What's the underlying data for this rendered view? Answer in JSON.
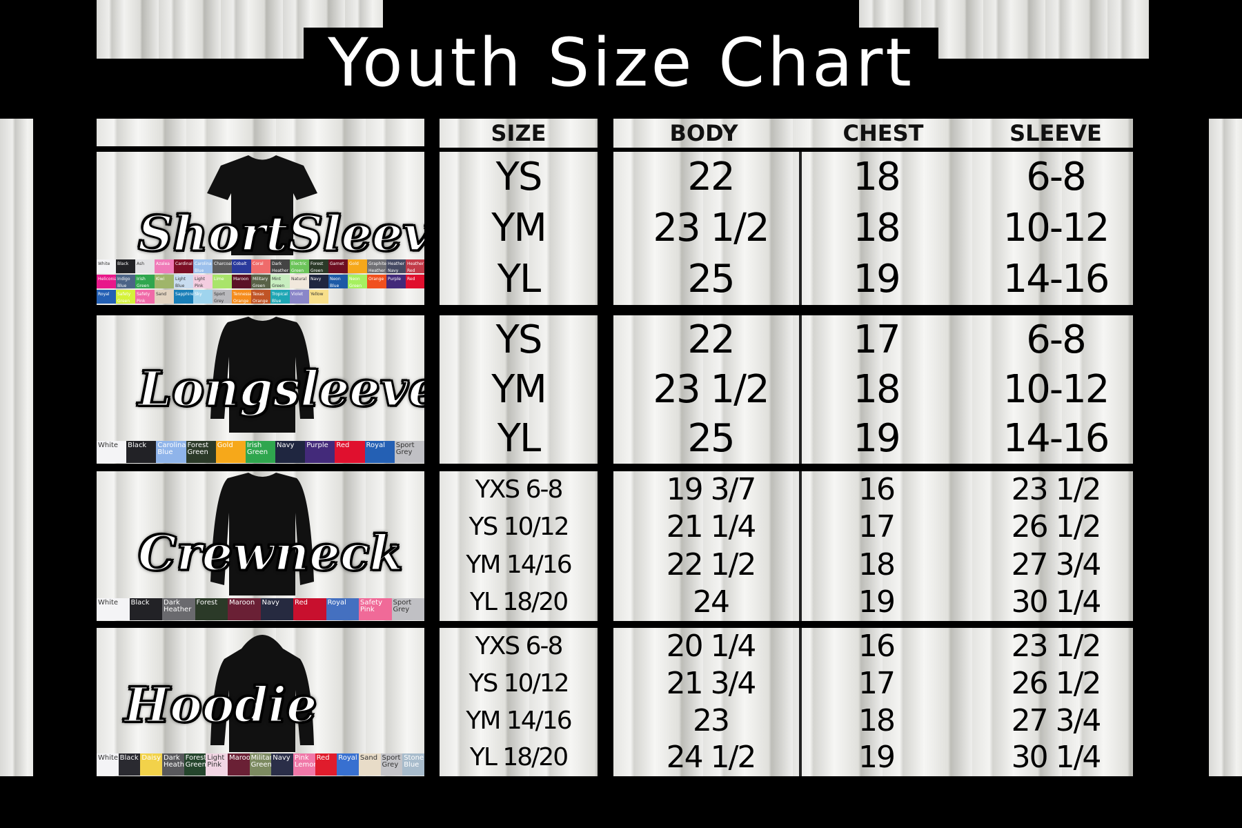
{
  "title": "Youth Size Chart",
  "headers": {
    "size": "SIZE",
    "body": "BODY",
    "chest": "CHEST",
    "sleeve": "SLEEVE"
  },
  "sections": [
    {
      "label": "ShortSleeve",
      "sizes": [
        "YS",
        "YM",
        "YL"
      ],
      "body": [
        "22",
        "23 1/2",
        "25"
      ],
      "chest": [
        "18",
        "18",
        "19"
      ],
      "sleeve": [
        "6-8",
        "10-12",
        "14-16"
      ],
      "swatches": [
        [
          "White",
          "#f4f4f6"
        ],
        [
          "Black",
          "#222226"
        ],
        [
          "Ash",
          "#e3e3e5"
        ],
        [
          "Azalea",
          "#f07ab8"
        ],
        [
          "Cardinal",
          "#7c0f26"
        ],
        [
          "Carolina Blue",
          "#9cc0ec"
        ],
        [
          "Charcoal",
          "#5b5b5b"
        ],
        [
          "Cobalt",
          "#2a3a9c"
        ],
        [
          "Coral",
          "#ef6b6b"
        ],
        [
          "Dark Heather",
          "#444"
        ],
        [
          "Electric Green",
          "#6cc45a"
        ],
        [
          "Forest Green",
          "#2b3a28"
        ],
        [
          "Garnet",
          "#6e0f22"
        ],
        [
          "Gold",
          "#f6a81a"
        ],
        [
          "Graphite Heather",
          "#707074"
        ],
        [
          "Heather Navy",
          "#454a63"
        ],
        [
          "Heather Red",
          "#c23a48"
        ],
        [
          "Heliconia",
          "#e8188a"
        ],
        [
          "Indigo Blue",
          "#4c6486"
        ],
        [
          "Irish Green",
          "#2fa64e"
        ],
        [
          "Kiwi",
          "#9fb56a"
        ],
        [
          "Light Blue",
          "#c8dcf0"
        ],
        [
          "Light Pink",
          "#f4cde0"
        ],
        [
          "Lime",
          "#a9e46a"
        ],
        [
          "Maroon",
          "#5b1226"
        ],
        [
          "Military Green",
          "#596247"
        ],
        [
          "Mint Green",
          "#c8eec0"
        ],
        [
          "Natural",
          "#f1e8dc"
        ],
        [
          "Navy",
          "#1f2640"
        ],
        [
          "Neon Blue",
          "#1d5aa6"
        ],
        [
          "Neon Green",
          "#a6f060"
        ],
        [
          "Orange",
          "#f0501e"
        ],
        [
          "Purple",
          "#432a7a"
        ],
        [
          "Red",
          "#e0102e"
        ],
        [
          "Royal",
          "#2460b4"
        ],
        [
          "Safety Green",
          "#d5f23a"
        ],
        [
          "Safety Pink",
          "#f06aa8"
        ],
        [
          "Sand",
          "#e2d3c0"
        ],
        [
          "Sapphire",
          "#1a7fb8"
        ],
        [
          "Sky",
          "#9fd4ee"
        ],
        [
          "Sport Grey",
          "#b9b9bd"
        ],
        [
          "Tennessee Orange",
          "#f58c1c"
        ],
        [
          "Texas Orange",
          "#c05426"
        ],
        [
          "Tropical Blue",
          "#1ea6b4"
        ],
        [
          "Violet",
          "#8a86c8"
        ],
        [
          "Yellow",
          "#f8df8a"
        ]
      ]
    },
    {
      "label": "Longsleeve",
      "sizes": [
        "YS",
        "YM",
        "YL"
      ],
      "body": [
        "22",
        "23 1/2",
        "25"
      ],
      "chest": [
        "17",
        "18",
        "19"
      ],
      "sleeve": [
        "6-8",
        "10-12",
        "14-16"
      ],
      "swatches": [
        [
          "White",
          "#f4f4f6"
        ],
        [
          "Black",
          "#222226"
        ],
        [
          "Carolina Blue",
          "#8fb4ea"
        ],
        [
          "Forest Green",
          "#2b3a28"
        ],
        [
          "Gold",
          "#f6a81a"
        ],
        [
          "Irish Green",
          "#2fa64e"
        ],
        [
          "Navy",
          "#1f2640"
        ],
        [
          "Purple",
          "#432a7a"
        ],
        [
          "Red",
          "#e0102e"
        ],
        [
          "Royal",
          "#2460b4"
        ],
        [
          "Sport Grey",
          "#c0c0c4"
        ]
      ]
    },
    {
      "label": "Crewneck",
      "sizes": [
        "YXS 6-8",
        "YS 10/12",
        "YM 14/16",
        "YL 18/20"
      ],
      "body": [
        "19 3/7",
        "21 1/4",
        "22 1/2",
        "24"
      ],
      "chest": [
        "16",
        "17",
        "18",
        "19"
      ],
      "sleeve": [
        "23 1/2",
        "26 1/2",
        "27 3/4",
        "30 1/4"
      ],
      "swatches": [
        [
          "White",
          "#f4f4f6"
        ],
        [
          "Black",
          "#222226"
        ],
        [
          "Dark Heather",
          "#6a6a6e"
        ],
        [
          "Forest",
          "#2b3a28"
        ],
        [
          "Maroon",
          "#6a2035"
        ],
        [
          "Navy",
          "#262a40"
        ],
        [
          "Red",
          "#c8102e"
        ],
        [
          "Royal",
          "#4470c0"
        ],
        [
          "Safety Pink",
          "#f06a98"
        ],
        [
          "Sport Grey",
          "#c0c0c4"
        ]
      ]
    },
    {
      "label": "Hoodie",
      "sizes": [
        "YXS 6-8",
        "YS 10/12",
        "YM 14/16",
        "YL 18/20"
      ],
      "body": [
        "20 1/4",
        "21 3/4",
        "23",
        "24 1/2"
      ],
      "chest": [
        "16",
        "17",
        "18",
        "19"
      ],
      "sleeve": [
        "23 1/2",
        "26 1/2",
        "27 3/4",
        "30 1/4"
      ],
      "swatches": [
        [
          "White",
          "#f4f4f6"
        ],
        [
          "Black",
          "#2a2a30"
        ],
        [
          "Daisy",
          "#f2d24a"
        ],
        [
          "Dark Heather",
          "#58585c"
        ],
        [
          "Forest Green",
          "#24452c"
        ],
        [
          "Light Pink",
          "#f2d6e4"
        ],
        [
          "Maroon",
          "#6a2035"
        ],
        [
          "Military Green",
          "#7c8a60"
        ],
        [
          "Navy",
          "#2a2e48"
        ],
        [
          "Pink Lemonade",
          "#f078a8"
        ],
        [
          "Red",
          "#e01c2c"
        ],
        [
          "Royal",
          "#3870d0"
        ],
        [
          "Sand",
          "#e8dcc8"
        ],
        [
          "Sport Grey",
          "#c4c4c8"
        ],
        [
          "Stone Blue",
          "#a8bccc"
        ]
      ]
    }
  ]
}
